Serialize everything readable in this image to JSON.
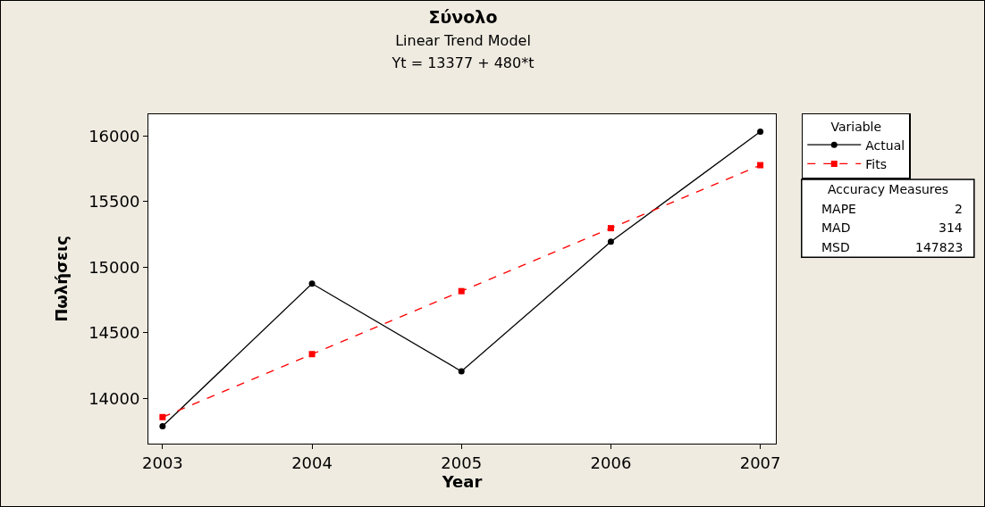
{
  "chart_data": {
    "type": "line",
    "title": "Σύνολο",
    "subtitle": "Linear Trend Model\nYt = 13377 + 480*t",
    "xlabel": "Year",
    "ylabel": "Πωλήσεις",
    "legend_title": "Variable",
    "x": [
      2003,
      2004,
      2005,
      2006,
      2007
    ],
    "series": [
      {
        "name": "Actual",
        "color": "#000000",
        "marker": "circle",
        "line_style": "solid",
        "values": [
          13787,
          14874,
          14206,
          15194,
          16032
        ]
      },
      {
        "name": "Fits",
        "color": "#ff0000",
        "marker": "square",
        "line_style": "dashed",
        "values": [
          13857,
          14337,
          14817,
          15297,
          15777
        ]
      }
    ],
    "xlim": [
      2002.905,
      2007.104
    ],
    "xticks": [
      2003,
      2004,
      2005,
      2006,
      2007
    ],
    "ylim": [
      13655,
      16165
    ],
    "yticks": [
      14000,
      14500,
      15000,
      15500,
      16000
    ],
    "grid": false,
    "legend": "top right",
    "annotations": [
      "Accuracy Measures",
      "MAPE 2",
      "MAD 314",
      "MSD 147823"
    ]
  }
}
